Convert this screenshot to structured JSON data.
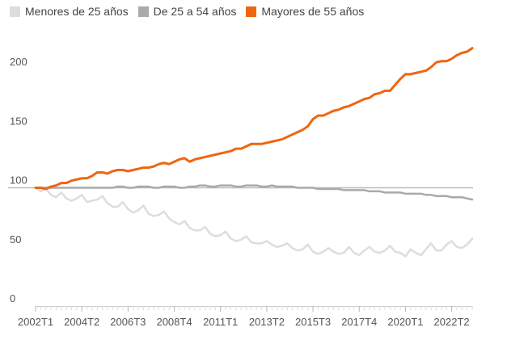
{
  "chart_data": {
    "type": "line",
    "title": "",
    "xlabel": "",
    "ylabel": "",
    "ylim": [
      0,
      220
    ],
    "y_ticks": [
      0,
      50,
      100,
      150,
      200
    ],
    "reference_line": 100,
    "x_tick_labels": [
      "2002T1",
      "2004T2",
      "2006T3",
      "2008T4",
      "2011T1",
      "2013T2",
      "2015T3",
      "2017T4",
      "2020T1",
      "2022T2"
    ],
    "x_tick_every": 9,
    "grid": false,
    "legend_position": "top-left",
    "series": [
      {
        "name": "Menores de 25 años",
        "color": "#dddddd",
        "values": [
          100,
          97,
          99,
          94,
          92,
          96,
          91,
          89,
          91,
          94,
          88,
          89,
          90,
          93,
          87,
          84,
          84,
          88,
          82,
          79,
          81,
          85,
          78,
          76,
          77,
          80,
          74,
          71,
          69,
          72,
          66,
          64,
          64,
          67,
          61,
          59,
          60,
          63,
          57,
          55,
          56,
          59,
          54,
          53,
          53,
          55,
          52,
          50,
          51,
          53,
          49,
          47,
          48,
          52,
          46,
          44,
          46,
          49,
          46,
          44,
          45,
          50,
          45,
          43,
          47,
          50,
          46,
          45,
          47,
          51,
          46,
          45,
          42,
          48,
          45,
          43,
          48,
          53,
          47,
          47,
          52,
          55,
          50,
          49,
          52,
          57
        ]
      },
      {
        "name": "De 25 a 54 años",
        "color": "#aaaaaa",
        "values": [
          100,
          100,
          100,
          100,
          100,
          100,
          100,
          100,
          100,
          100,
          100,
          100,
          100,
          100,
          100,
          100,
          101,
          101,
          100,
          100,
          101,
          101,
          101,
          100,
          100,
          101,
          101,
          101,
          100,
          100,
          101,
          101,
          102,
          102,
          101,
          101,
          102,
          102,
          102,
          101,
          101,
          102,
          102,
          102,
          101,
          101,
          102,
          101,
          101,
          101,
          101,
          100,
          100,
          100,
          100,
          99,
          99,
          99,
          99,
          99,
          98,
          98,
          98,
          98,
          98,
          97,
          97,
          97,
          96,
          96,
          96,
          96,
          95,
          95,
          95,
          95,
          94,
          94,
          93,
          93,
          93,
          92,
          92,
          92,
          91,
          90
        ]
      },
      {
        "name": "Mayores de 55 años",
        "color": "#ee6611",
        "values": [
          100,
          100,
          99,
          101,
          102,
          104,
          104,
          106,
          107,
          108,
          108,
          110,
          113,
          113,
          112,
          114,
          115,
          115,
          114,
          115,
          116,
          117,
          117,
          118,
          120,
          121,
          120,
          122,
          124,
          125,
          122,
          124,
          125,
          126,
          127,
          128,
          129,
          130,
          131,
          133,
          133,
          135,
          137,
          137,
          137,
          138,
          139,
          140,
          141,
          143,
          145,
          147,
          149,
          152,
          158,
          161,
          161,
          163,
          165,
          166,
          168,
          169,
          171,
          173,
          175,
          176,
          179,
          180,
          182,
          182,
          187,
          192,
          196,
          196,
          197,
          198,
          199,
          202,
          206,
          207,
          207,
          209,
          212,
          214,
          215,
          218
        ]
      }
    ]
  }
}
